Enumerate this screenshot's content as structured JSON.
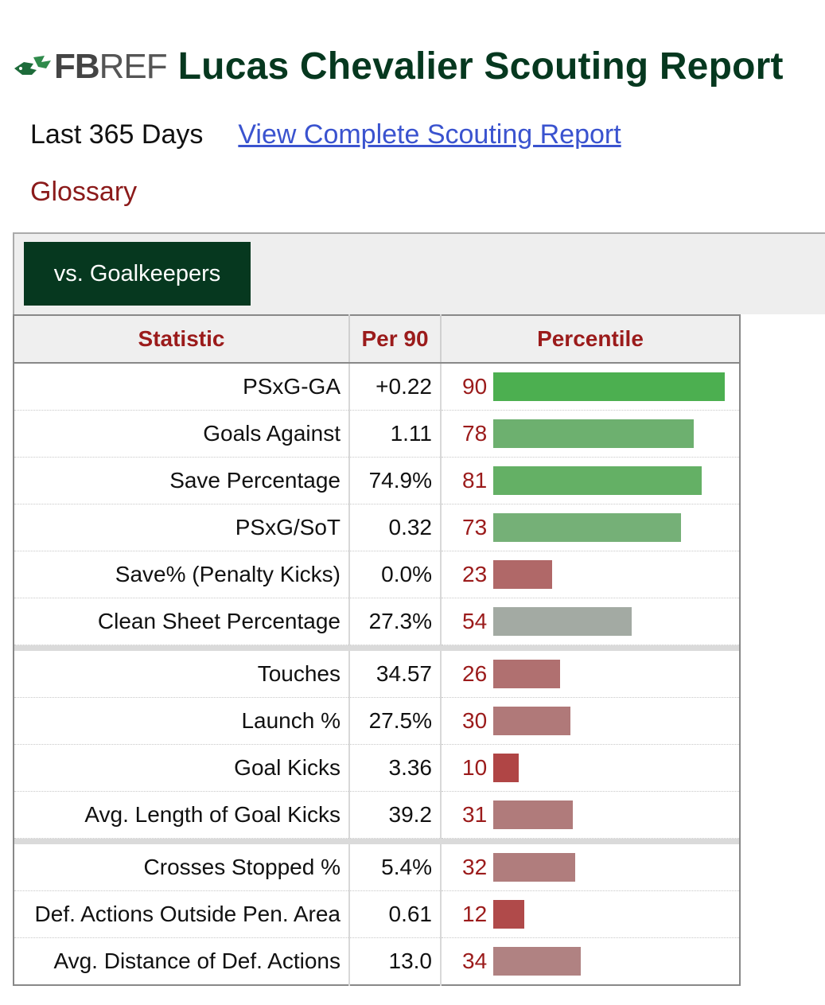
{
  "brand": {
    "bold": "FB",
    "light": "REF"
  },
  "title": "Lucas Chevalier Scouting Report",
  "period": "Last 365 Days",
  "full_report_link": "View Complete Scouting Report",
  "glossary": "Glossary",
  "tab": "vs. Goalkeepers",
  "headers": {
    "statistic": "Statistic",
    "per90": "Per 90",
    "percentile": "Percentile"
  },
  "colors": {
    "brand_green": "#06381f",
    "link": "#3a53cf",
    "label_red": "#9b1b1b"
  },
  "groups": [
    [
      {
        "stat": "PSxG-GA",
        "per90": "+0.22",
        "pct": 90,
        "color": "#4caf50"
      },
      {
        "stat": "Goals Against",
        "per90": "1.11",
        "pct": 78,
        "color": "#6db06f"
      },
      {
        "stat": "Save Percentage",
        "per90": "74.9%",
        "pct": 81,
        "color": "#64b065"
      },
      {
        "stat": "PSxG/SoT",
        "per90": "0.32",
        "pct": 73,
        "color": "#75b077"
      },
      {
        "stat": "Save% (Penalty Kicks)",
        "per90": "0.0%",
        "pct": 23,
        "color": "#b06868"
      },
      {
        "stat": "Clean Sheet Percentage",
        "per90": "27.3%",
        "pct": 54,
        "color": "#a3aaa3"
      }
    ],
    [
      {
        "stat": "Touches",
        "per90": "34.57",
        "pct": 26,
        "color": "#b07070"
      },
      {
        "stat": "Launch %",
        "per90": "27.5%",
        "pct": 30,
        "color": "#b07979"
      },
      {
        "stat": "Goal Kicks",
        "per90": "3.36",
        "pct": 10,
        "color": "#b04545"
      },
      {
        "stat": "Avg. Length of Goal Kicks",
        "per90": "39.2",
        "pct": 31,
        "color": "#b07b7b"
      }
    ],
    [
      {
        "stat": "Crosses Stopped %",
        "per90": "5.4%",
        "pct": 32,
        "color": "#b07d7d"
      },
      {
        "stat": "Def. Actions Outside Pen. Area",
        "per90": "0.61",
        "pct": 12,
        "color": "#b04a4a"
      },
      {
        "stat": "Avg. Distance of Def. Actions",
        "per90": "13.0",
        "pct": 34,
        "color": "#b08282"
      }
    ]
  ]
}
